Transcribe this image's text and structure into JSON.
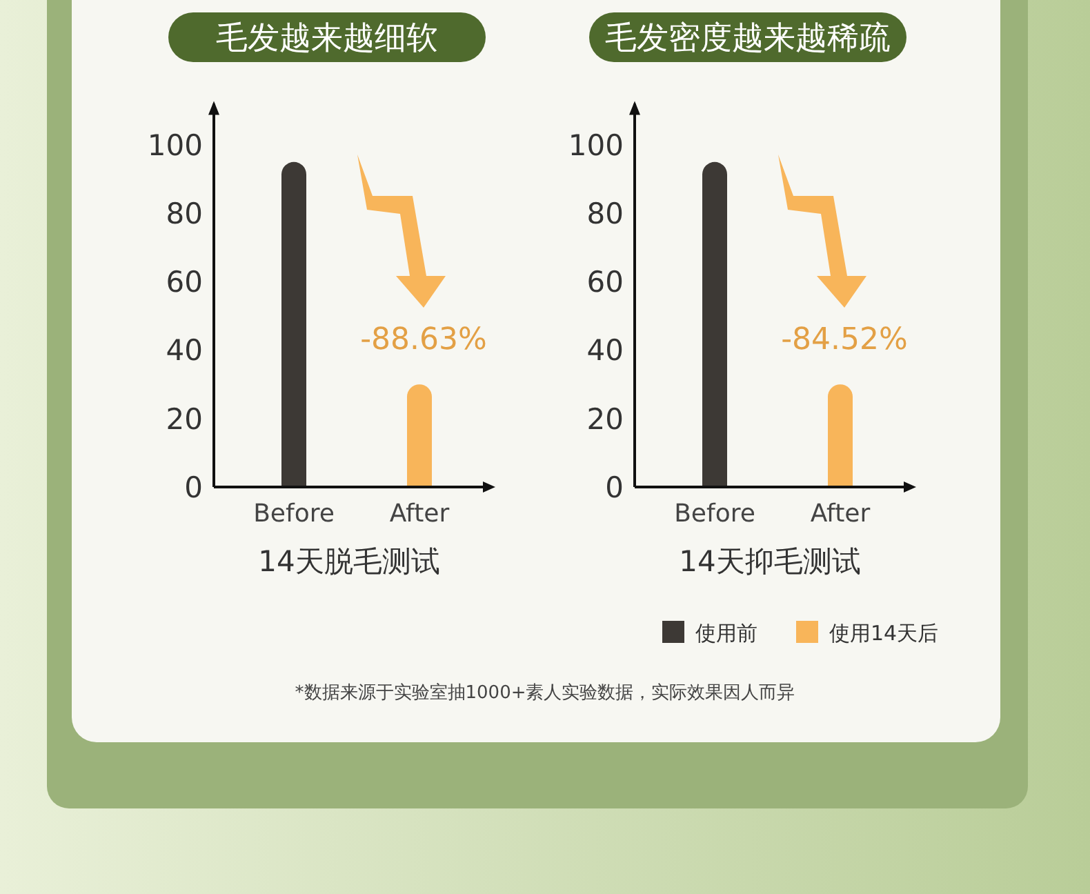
{
  "chart_data": [
    {
      "type": "bar",
      "title": "毛发越来越细软",
      "xlabel": "14天脱毛测试",
      "categories": [
        "Before",
        "After"
      ],
      "series": [
        {
          "color": "#3d3935",
          "values": [
            95,
            null
          ]
        },
        {
          "color": "#f8b55a",
          "values": [
            null,
            30
          ]
        }
      ],
      "ylim": [
        0,
        112
      ],
      "yticks": [
        0,
        20,
        40,
        60,
        80,
        100
      ],
      "grid": false,
      "annotations": [
        "-88.63%"
      ]
    },
    {
      "type": "bar",
      "title": "毛发密度越来越稀疏",
      "xlabel": "14天抑毛测试",
      "categories": [
        "Before",
        "After"
      ],
      "series": [
        {
          "name": "使用前",
          "color": "#3d3935",
          "values": [
            95,
            null
          ]
        },
        {
          "name": "使用14天后",
          "color": "#f8b55a",
          "values": [
            null,
            30
          ]
        }
      ],
      "ylim": [
        0,
        112
      ],
      "yticks": [
        0,
        20,
        40,
        60,
        80,
        100
      ],
      "grid": false,
      "legend": "bottom right",
      "annotations": [
        "-84.52%",
        "*数据来源于实验室抽1000+素人实验数据，实际效果因人而异"
      ]
    }
  ]
}
